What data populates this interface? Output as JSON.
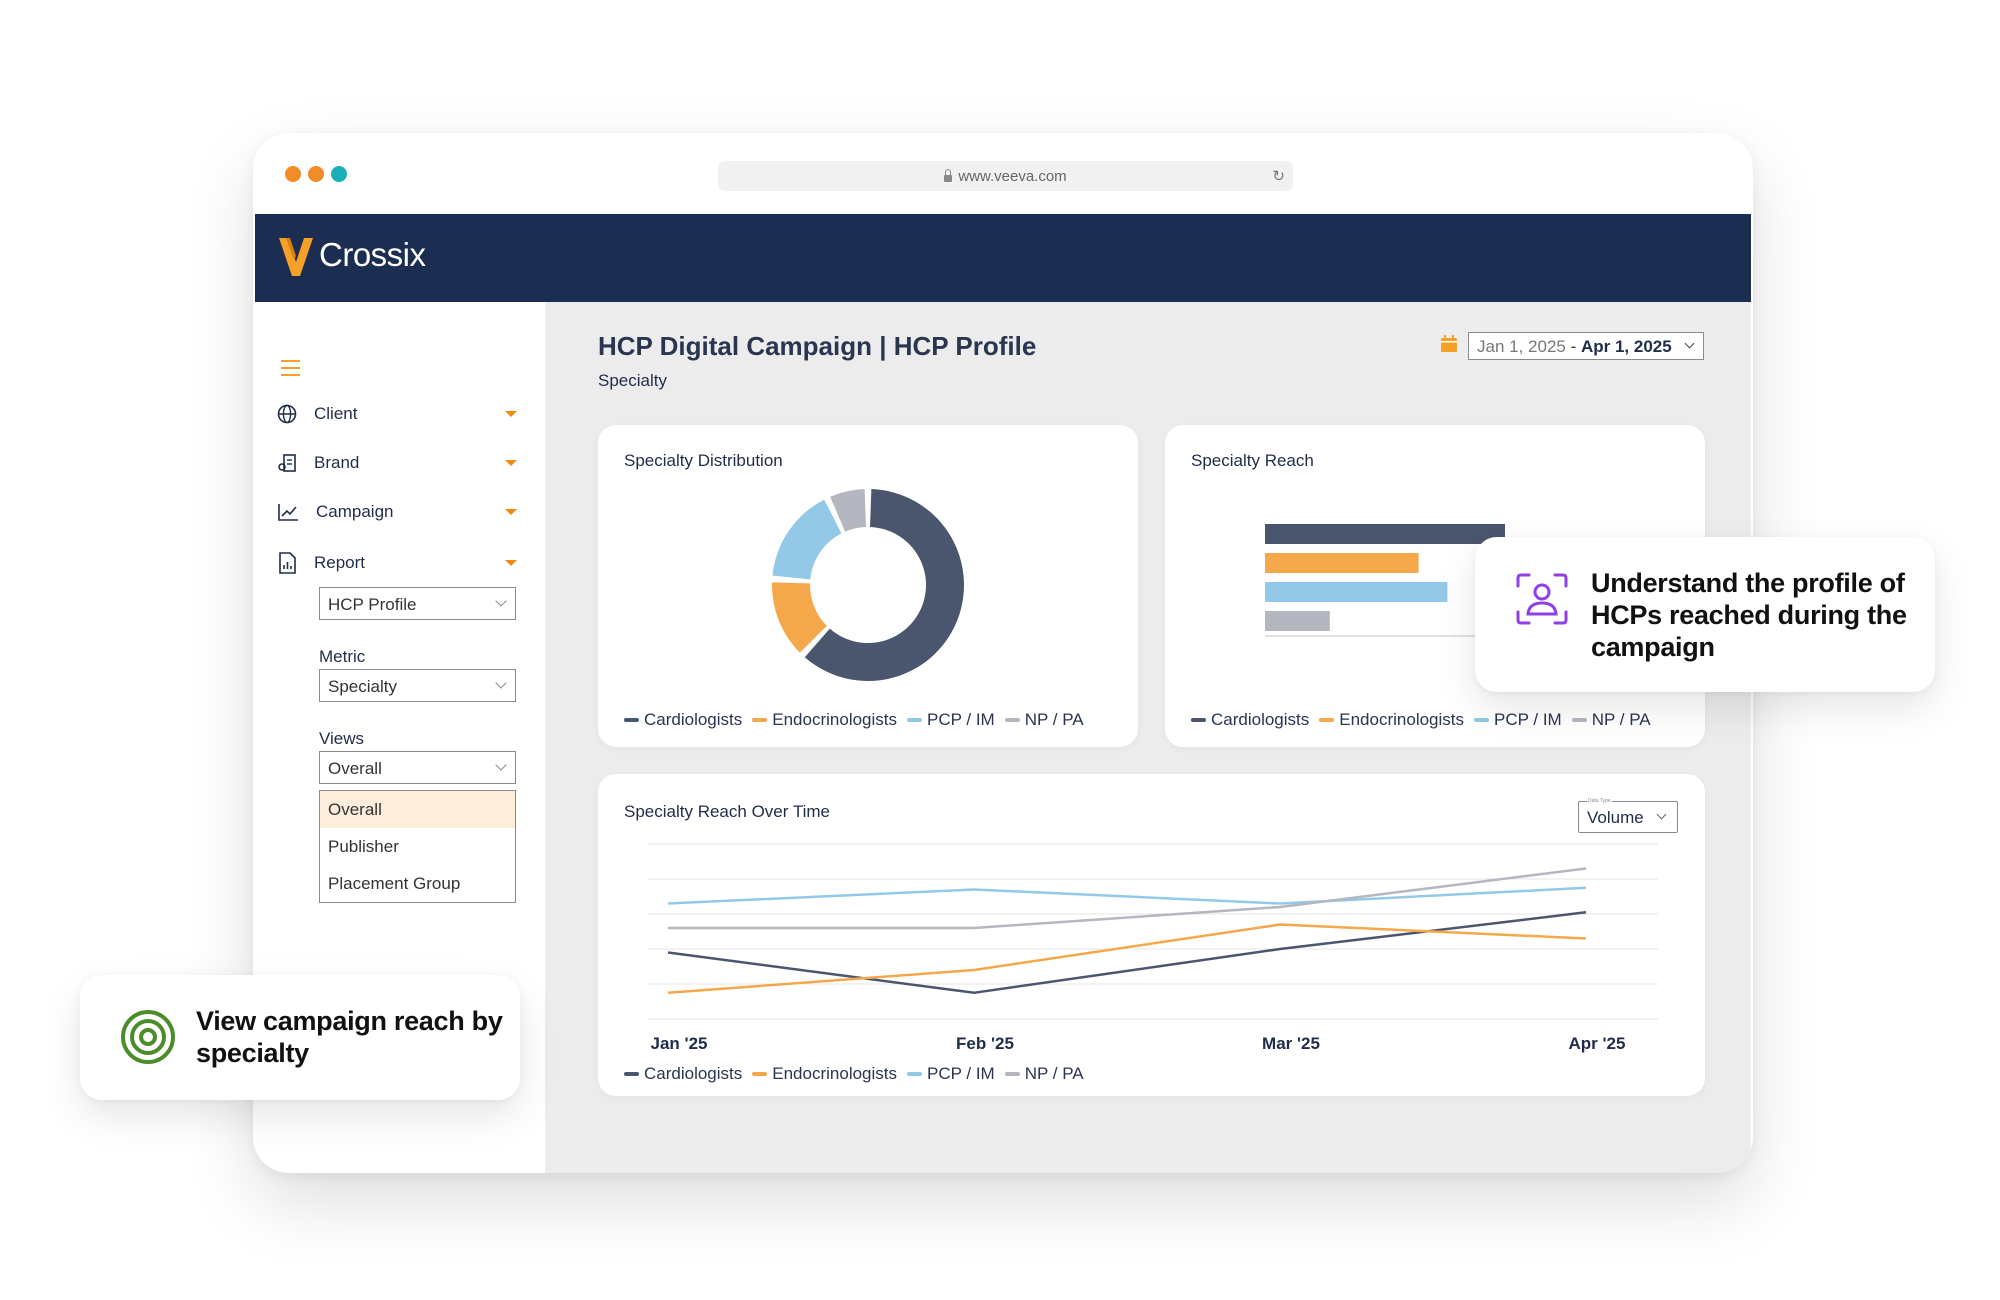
{
  "window": {
    "url": "www.veeva.com",
    "dot_colors": [
      "#f28c28",
      "#f28c28",
      "#1ab0b8"
    ]
  },
  "app": {
    "brand": "Crossix",
    "logo_color": "#f5a027",
    "header_color": "#1c2d52"
  },
  "sidebar": {
    "nav": [
      {
        "label": "Client",
        "icon": "globe-icon"
      },
      {
        "label": "Brand",
        "icon": "brand-icon"
      },
      {
        "label": "Campaign",
        "icon": "chart-line-icon"
      },
      {
        "label": "Report",
        "icon": "report-icon"
      }
    ],
    "report_select": "HCP Profile",
    "metric_label": "Metric",
    "metric_select": "Specialty",
    "views_label": "Views",
    "views_select": "Overall",
    "views_options": [
      "Overall",
      "Publisher",
      "Placement Group"
    ]
  },
  "page": {
    "title": "HCP Digital Campaign | HCP Profile",
    "subtitle": "Specialty",
    "date_start": "Jan 1, 2025",
    "date_sep": " - ",
    "date_end": "Apr 1, 2025"
  },
  "cards": {
    "distribution_title": "Specialty Distribution",
    "reach_title": "Specialty Reach",
    "overtime_title": "Specialty Reach Over Time",
    "data_type_label": "Data Type",
    "data_type_value": "Volume"
  },
  "legend": [
    {
      "label": "Cardiologists",
      "color": "#4a566e"
    },
    {
      "label": "Endocrinologists",
      "color": "#f5a84a"
    },
    {
      "label": "PCP / IM",
      "color": "#93c9e6"
    },
    {
      "label": "NP / PA",
      "color": "#b4b7c0"
    }
  ],
  "chart_data": [
    {
      "type": "pie",
      "title": "Specialty Distribution",
      "categories": [
        "Cardiologists",
        "Endocrinologists",
        "PCP / IM",
        "NP / PA"
      ],
      "values": [
        62,
        14,
        17,
        7
      ],
      "colors": [
        "#4a566e",
        "#f5a84a",
        "#93c9e6",
        "#b4b7c0"
      ]
    },
    {
      "type": "bar",
      "title": "Specialty Reach",
      "orientation": "horizontal",
      "categories": [
        "Cardiologists",
        "Endocrinologists",
        "PCP / IM",
        "NP / PA"
      ],
      "values": [
        100,
        64,
        76,
        27
      ],
      "colors": [
        "#4a566e",
        "#f5a84a",
        "#93c9e6",
        "#b4b7c0"
      ]
    },
    {
      "type": "line",
      "title": "Specialty Reach Over Time",
      "categories": [
        "Jan '25",
        "Feb '25",
        "Mar '25",
        "Apr '25"
      ],
      "ylim": [
        0,
        100
      ],
      "series": [
        {
          "name": "Cardiologists",
          "color": "#4a566e",
          "values": [
            38,
            15,
            40,
            61
          ]
        },
        {
          "name": "Endocrinologists",
          "color": "#f5a84a",
          "values": [
            15,
            28,
            54,
            46
          ]
        },
        {
          "name": "PCP / IM",
          "color": "#93c9e6",
          "values": [
            66,
            74,
            66,
            75
          ]
        },
        {
          "name": "NP / PA",
          "color": "#b4b7c0",
          "values": [
            52,
            52,
            64,
            86
          ]
        }
      ]
    }
  ],
  "callouts": {
    "profile": "Understand the profile of HCPs reached during the campaign",
    "profile_color": "#8e3fe8",
    "reach": "View campaign reach by specialty",
    "reach_color": "#4b8d2a"
  }
}
